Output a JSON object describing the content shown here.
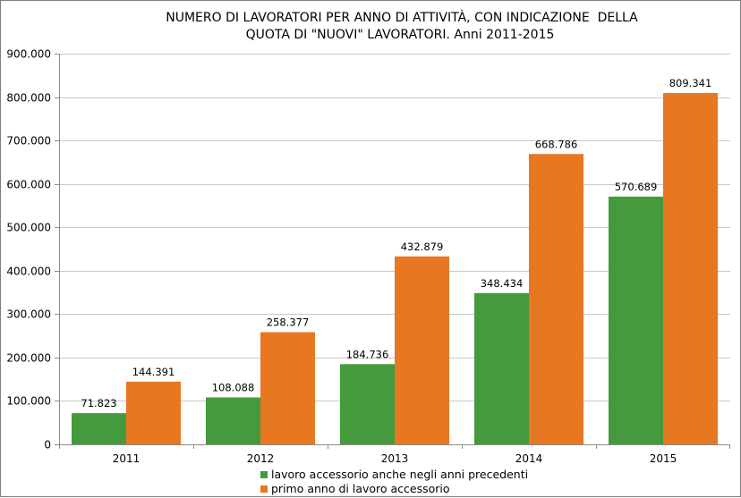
{
  "chart_data": {
    "type": "bar",
    "title": "NUMERO DI LAVORATORI PER ANNO DI ATTIVITÀ, CON INDICAZIONE  DELLA QUOTA DI \"NUOVI\" LAVORATORI. Anni 2011-2015",
    "title_lines": [
      "NUMERO DI LAVORATORI PER ANNO DI ATTIVITÀ, CON INDICAZIONE  DELLA",
      "QUOTA DI \"NUOVI\" LAVORATORI. Anni 2011-2015"
    ],
    "categories": [
      "2011",
      "2012",
      "2013",
      "2014",
      "2015"
    ],
    "series": [
      {
        "name": "lavoro accessorio anche negli anni precedenti",
        "color": "#449a3c",
        "values": [
          71823,
          108088,
          184736,
          348434,
          570689
        ],
        "labels": [
          "71.823",
          "108.088",
          "184.736",
          "348.434",
          "570.689"
        ]
      },
      {
        "name": "primo anno di lavoro accessorio",
        "color": "#e87722",
        "values": [
          144391,
          258377,
          432879,
          668786,
          809341
        ],
        "labels": [
          "144.391",
          "258.377",
          "432.879",
          "668.786",
          "809.341"
        ]
      }
    ],
    "ylim": [
      0,
      900000
    ],
    "y_ticks": [
      0,
      100000,
      200000,
      300000,
      400000,
      500000,
      600000,
      700000,
      800000,
      900000
    ],
    "y_tick_labels": [
      "0",
      "100.000",
      "200.000",
      "300.000",
      "400.000",
      "500.000",
      "600.000",
      "700.000",
      "800.000",
      "900.000"
    ],
    "xlabel": "",
    "ylabel": "",
    "grid": true,
    "legend_position": "bottom"
  }
}
